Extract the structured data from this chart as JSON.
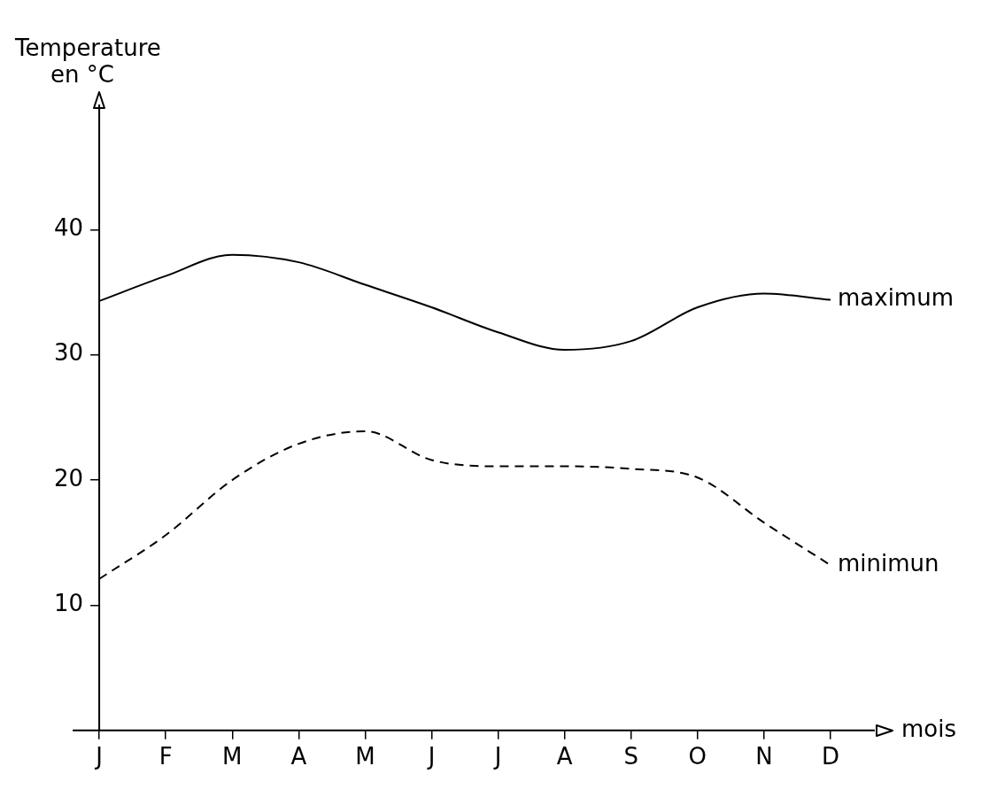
{
  "chart_data": {
    "type": "line",
    "ylabel": "Temperature en °C",
    "xlabel": "mois",
    "categories": [
      "J",
      "F",
      "M",
      "A",
      "M",
      "J",
      "J",
      "A",
      "S",
      "O",
      "N",
      "D"
    ],
    "series": [
      {
        "name": "maximum",
        "color": "#000000",
        "line_style": "solid",
        "values": [
          34.3,
          36.3,
          38.0,
          37.4,
          35.6,
          33.8,
          31.8,
          30.4,
          31.1,
          33.8,
          34.9,
          34.4
        ]
      },
      {
        "name": "minimun",
        "color": "#000000",
        "line_style": "dashed",
        "values": [
          12.1,
          15.6,
          20.0,
          22.9,
          23.9,
          21.6,
          21.1,
          21.1,
          20.9,
          20.2,
          16.6,
          13.2
        ]
      }
    ],
    "ylim": [
      0,
      50
    ],
    "yticks": [
      10,
      20,
      30,
      40
    ],
    "grid": false,
    "legend": false,
    "marker": "none"
  }
}
